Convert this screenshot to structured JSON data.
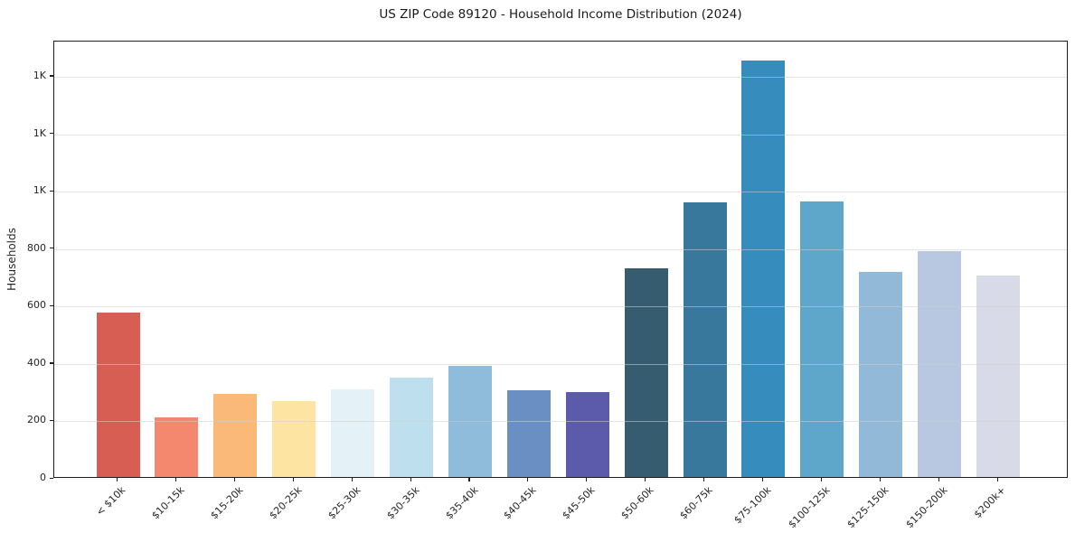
{
  "chart_data": {
    "type": "bar",
    "title": "US ZIP Code 89120 - Household Income Distribution (2024)",
    "xlabel": "",
    "ylabel": "Households",
    "categories": [
      "< $10k",
      "$10-15k",
      "$15-20k",
      "$20-25k",
      "$25-30k",
      "$30-35k",
      "$35-40k",
      "$40-45k",
      "$45-50k",
      "$50-60k",
      "$60-75k",
      "$75-100k",
      "$100-125k",
      "$125-150k",
      "$150-200k",
      "$200k+"
    ],
    "values": [
      573,
      208,
      290,
      264,
      306,
      346,
      388,
      302,
      297,
      728,
      956,
      1450,
      959,
      715,
      785,
      701
    ],
    "bar_colors": [
      "#d75e53",
      "#f4886e",
      "#fab879",
      "#fde4a3",
      "#e4f1f7",
      "#bedfed",
      "#8fbcdb",
      "#6a90c3",
      "#5b5aab",
      "#365c6f",
      "#38789c",
      "#368cbd",
      "#5fa7ca",
      "#92b9d8",
      "#b7c8e0",
      "#d8dae7"
    ],
    "ytick_values": [
      0,
      200,
      400,
      600,
      800,
      1000,
      1200,
      1400
    ],
    "ytick_labels": [
      "0",
      "200",
      "400",
      "600",
      "800",
      "1K",
      "1K",
      "1K"
    ],
    "ylim": [
      0,
      1522.5
    ],
    "grid": "horizontal",
    "legend": "none"
  },
  "colors": {
    "background": "#ffffff",
    "axis": "#1f1f1f",
    "grid": "rgba(205,205,205,0.55)",
    "text": "#262626"
  }
}
